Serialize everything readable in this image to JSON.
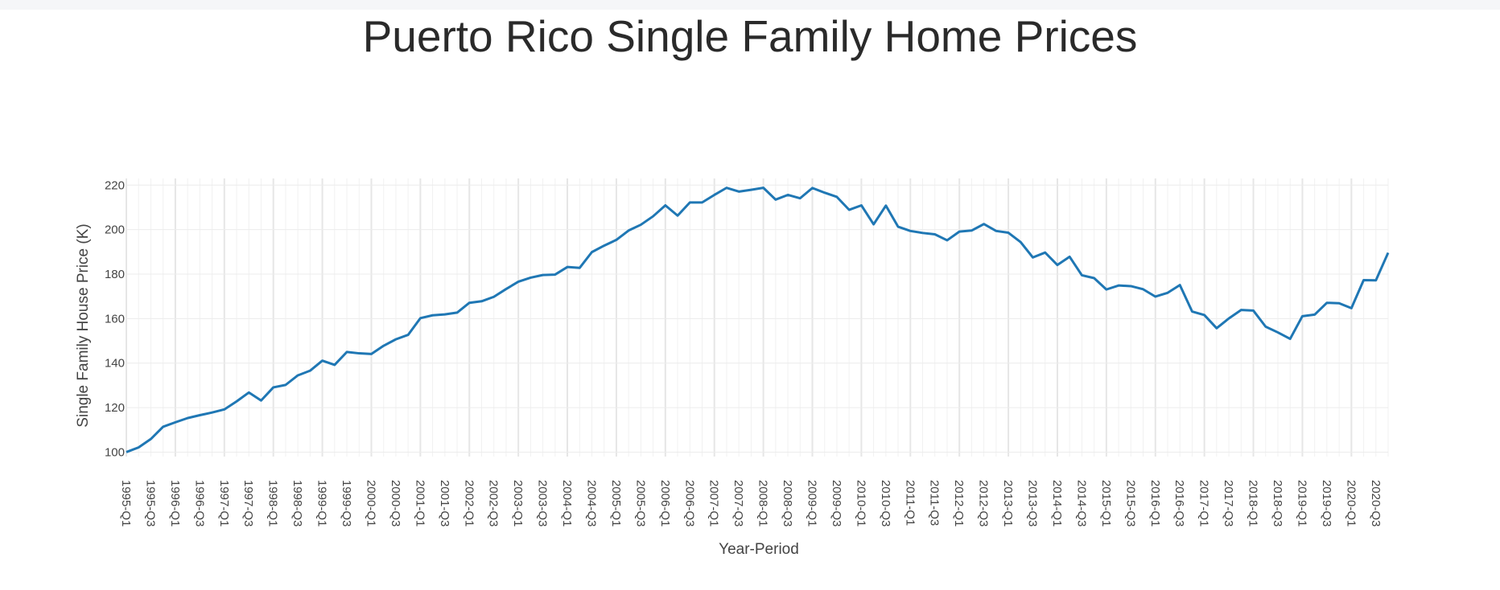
{
  "chart_data": {
    "type": "line",
    "title": "Puerto Rico Single Family Home Prices",
    "xlabel": "Year-Period",
    "ylabel": "Single Family House Price (K)",
    "ylim": [
      98,
      223
    ],
    "yticks": [
      100,
      120,
      140,
      160,
      180,
      200,
      220
    ],
    "grid": true,
    "legend": "none",
    "line_color": "#1f77b4",
    "x": [
      "1995-Q1",
      "1995-Q2",
      "1995-Q3",
      "1995-Q4",
      "1996-Q1",
      "1996-Q2",
      "1996-Q3",
      "1996-Q4",
      "1997-Q1",
      "1997-Q2",
      "1997-Q3",
      "1997-Q4",
      "1998-Q1",
      "1998-Q2",
      "1998-Q3",
      "1998-Q4",
      "1999-Q1",
      "1999-Q2",
      "1999-Q3",
      "1999-Q4",
      "2000-Q1",
      "2000-Q2",
      "2000-Q3",
      "2000-Q4",
      "2001-Q1",
      "2001-Q2",
      "2001-Q3",
      "2001-Q4",
      "2002-Q1",
      "2002-Q2",
      "2002-Q3",
      "2002-Q4",
      "2003-Q1",
      "2003-Q2",
      "2003-Q3",
      "2003-Q4",
      "2004-Q1",
      "2004-Q2",
      "2004-Q3",
      "2004-Q4",
      "2005-Q1",
      "2005-Q2",
      "2005-Q3",
      "2005-Q4",
      "2006-Q1",
      "2006-Q2",
      "2006-Q3",
      "2006-Q4",
      "2007-Q1",
      "2007-Q2",
      "2007-Q3",
      "2007-Q4",
      "2008-Q1",
      "2008-Q2",
      "2008-Q3",
      "2008-Q4",
      "2009-Q1",
      "2009-Q2",
      "2009-Q3",
      "2009-Q4",
      "2010-Q1",
      "2010-Q2",
      "2010-Q3",
      "2010-Q4",
      "2011-Q1",
      "2011-Q2",
      "2011-Q3",
      "2011-Q4",
      "2012-Q1",
      "2012-Q2",
      "2012-Q3",
      "2012-Q4",
      "2013-Q1",
      "2013-Q2",
      "2013-Q3",
      "2013-Q4",
      "2014-Q1",
      "2014-Q2",
      "2014-Q3",
      "2014-Q4",
      "2015-Q1",
      "2015-Q2",
      "2015-Q3",
      "2015-Q4",
      "2016-Q1",
      "2016-Q2",
      "2016-Q3",
      "2016-Q4",
      "2017-Q1",
      "2017-Q2",
      "2017-Q3",
      "2017-Q4",
      "2018-Q1",
      "2018-Q2",
      "2018-Q3",
      "2018-Q4",
      "2019-Q1",
      "2019-Q2",
      "2019-Q3",
      "2019-Q4",
      "2020-Q1",
      "2020-Q2",
      "2020-Q3",
      "2020-Q4"
    ],
    "tick_labels": [
      "1995-Q1",
      "1995-Q3",
      "1996-Q1",
      "1996-Q3",
      "1997-Q1",
      "1997-Q3",
      "1998-Q1",
      "1998-Q3",
      "1999-Q1",
      "1999-Q3",
      "2000-Q1",
      "2000-Q3",
      "2001-Q1",
      "2001-Q3",
      "2002-Q1",
      "2002-Q3",
      "2003-Q1",
      "2003-Q3",
      "2004-Q1",
      "2004-Q3",
      "2005-Q1",
      "2005-Q3",
      "2006-Q1",
      "2006-Q3",
      "2007-Q1",
      "2007-Q3",
      "2008-Q1",
      "2008-Q3",
      "2009-Q1",
      "2009-Q3",
      "2010-Q1",
      "2010-Q3",
      "2011-Q1",
      "2011-Q3",
      "2012-Q1",
      "2012-Q3",
      "2013-Q1",
      "2013-Q3",
      "2014-Q1",
      "2014-Q3",
      "2015-Q1",
      "2015-Q3",
      "2016-Q1",
      "2016-Q3",
      "2017-Q1",
      "2017-Q3",
      "2018-Q1",
      "2018-Q3",
      "2019-Q1",
      "2019-Q3",
      "2020-Q1",
      "2020-Q3"
    ],
    "y": [
      100,
      102.1,
      105.9,
      111.4,
      113.4,
      115.3,
      116.6,
      117.8,
      119.2,
      122.8,
      126.8,
      123.2,
      129.1,
      130.2,
      134.5,
      136.6,
      141.1,
      139.2,
      145,
      144.4,
      144.1,
      147.8,
      150.7,
      152.7,
      160.2,
      161.5,
      161.9,
      162.7,
      167.1,
      167.8,
      169.8,
      173.3,
      176.6,
      178.4,
      179.6,
      179.8,
      183.2,
      182.8,
      189.9,
      192.8,
      195.4,
      199.6,
      202.2,
      206,
      210.9,
      206.3,
      212.2,
      212.2,
      215.6,
      218.8,
      217.1,
      217.9,
      218.8,
      213.5,
      215.6,
      214.1,
      218.7,
      216.6,
      214.7,
      208.9,
      210.9,
      202.4,
      210.8,
      201.3,
      199.4,
      198.5,
      197.9,
      195.2,
      199.1,
      199.6,
      202.5,
      199.4,
      198.6,
      194.4,
      187.5,
      189.7,
      184.1,
      187.8,
      179.5,
      178.2,
      173.1,
      174.9,
      174.6,
      173.2,
      169.9,
      171.6,
      175.1,
      163.2,
      161.6,
      155.7,
      160.1,
      163.9,
      163.6,
      156.4,
      153.8,
      150.9,
      161.1,
      161.8,
      167.1,
      166.9,
      164.7,
      177.3,
      177.2,
      189.6
    ]
  }
}
